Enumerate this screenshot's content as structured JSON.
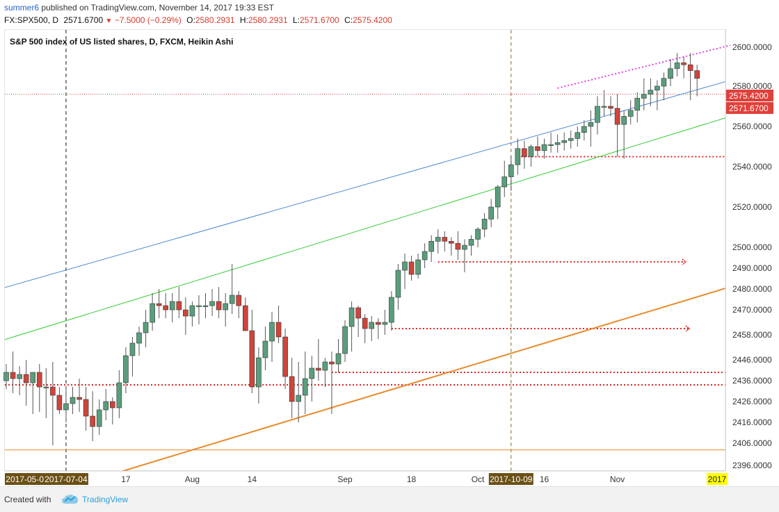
{
  "header": {
    "author": "summer6",
    "published": "published on TradingView.com, November 14, 2017 19:33 EST",
    "symbol": "FX:SPX500, D",
    "last": "2571.6700",
    "change": "−7.5000 (−0.29%)",
    "open_label": "O:",
    "open": "2580.2931",
    "high_label": "H:",
    "high": "2580.2931",
    "low_label": "L:",
    "low": "2571.6700",
    "close_label": "C:",
    "close": "2575.4200"
  },
  "chart_title": "S&P 500 index of US listed shares, D, FXCM, Heikin Ashi",
  "footer": {
    "created_with": "Created with",
    "brand": "TradingView"
  },
  "colors": {
    "bull": "#5a9e7c",
    "bear": "#d0443a",
    "blue_line": "#4a86cf",
    "green_line": "#33cc33",
    "orange_line": "#e88a2a",
    "dotted_red": "#e02020",
    "magenta": "#e040e0",
    "price_label": "#e0403a",
    "date_label_bg": "#6b4f14",
    "highlight_label": "#ffff00"
  },
  "chart_data": {
    "type": "candlestick",
    "title": "S&P 500 index of US listed shares, D, FXCM, Heikin Ashi",
    "y_ticks": [
      2600,
      2580,
      2560,
      2540,
      2520,
      2500,
      2490,
      2480,
      2470,
      2458,
      2446,
      2436,
      2426,
      2416,
      2406,
      2396
    ],
    "y_tick_labels": [
      "2600.0000",
      "2580.0000",
      "2560.0000",
      "2540.0000",
      "2520.0000",
      "2500.0000",
      "2490.0000",
      "2480.0000",
      "2470.0000",
      "2458.0000",
      "2446.0000",
      "2436.0000",
      "2426.0000",
      "2416.0000",
      "2406.0000",
      "2396.0000"
    ],
    "price_labels": [
      {
        "text": "2575.4200",
        "value": 2575.42
      },
      {
        "text": "2571.6700",
        "value": 2571.67
      }
    ],
    "x_labels": [
      {
        "text": "2017-05-05",
        "index": 1,
        "highlight": "date"
      },
      {
        "text": "2017-07-04",
        "index": 9,
        "highlight": "date"
      },
      {
        "text": "17",
        "index": 18
      },
      {
        "text": "Aug",
        "index": 28
      },
      {
        "text": "14",
        "index": 37
      },
      {
        "text": "Sep",
        "index": 51
      },
      {
        "text": "18",
        "index": 61
      },
      {
        "text": "Oct",
        "index": 71
      },
      {
        "text": "2017-10-09",
        "index": 76,
        "highlight": "date"
      },
      {
        "text": "16",
        "index": 81
      },
      {
        "text": "Nov",
        "index": 92
      },
      {
        "text": "2017",
        "index": 105,
        "highlight": "yellow"
      }
    ],
    "candles": [
      [
        2436,
        2444,
        2432,
        2440
      ],
      [
        2440,
        2450,
        2430,
        2437
      ],
      [
        2437,
        2443,
        2429,
        2439
      ],
      [
        2439,
        2446,
        2424,
        2435
      ],
      [
        2435,
        2440,
        2420,
        2440
      ],
      [
        2440,
        2444,
        2421,
        2433
      ],
      [
        2433,
        2442,
        2418,
        2433
      ],
      [
        2433,
        2445,
        2405,
        2429
      ],
      [
        2429,
        2433,
        2420,
        2422
      ],
      [
        2422,
        2433,
        2416,
        2425
      ],
      [
        2425,
        2433,
        2420,
        2428
      ],
      [
        2428,
        2437,
        2421,
        2427
      ],
      [
        2427,
        2433,
        2412,
        2419
      ],
      [
        2419,
        2431,
        2407,
        2414
      ],
      [
        2414,
        2427,
        2410,
        2422
      ],
      [
        2422,
        2432,
        2417,
        2426
      ],
      [
        2426,
        2428,
        2415,
        2423
      ],
      [
        2423,
        2441,
        2418,
        2435
      ],
      [
        2435,
        2452,
        2430,
        2448
      ],
      [
        2448,
        2457,
        2438,
        2454
      ],
      [
        2454,
        2462,
        2448,
        2459
      ],
      [
        2459,
        2470,
        2452,
        2464
      ],
      [
        2464,
        2478,
        2460,
        2473
      ],
      [
        2473,
        2480,
        2466,
        2472
      ],
      [
        2472,
        2478,
        2466,
        2470
      ],
      [
        2470,
        2478,
        2464,
        2474
      ],
      [
        2474,
        2481,
        2466,
        2470
      ],
      [
        2470,
        2476,
        2458,
        2467
      ],
      [
        2467,
        2474,
        2462,
        2472
      ],
      [
        2472,
        2477,
        2463,
        2472
      ],
      [
        2472,
        2478,
        2466,
        2472
      ],
      [
        2472,
        2480,
        2467,
        2474
      ],
      [
        2474,
        2481,
        2466,
        2470
      ],
      [
        2470,
        2478,
        2462,
        2473
      ],
      [
        2473,
        2492,
        2468,
        2477
      ],
      [
        2477,
        2479,
        2466,
        2472
      ],
      [
        2472,
        2476,
        2461,
        2460
      ],
      [
        2460,
        2470,
        2430,
        2433
      ],
      [
        2433,
        2452,
        2425,
        2447
      ],
      [
        2447,
        2462,
        2441,
        2455
      ],
      [
        2455,
        2469,
        2445,
        2464
      ],
      [
        2464,
        2472,
        2454,
        2457
      ],
      [
        2457,
        2461,
        2432,
        2438
      ],
      [
        2438,
        2447,
        2418,
        2426
      ],
      [
        2426,
        2445,
        2416,
        2429
      ],
      [
        2429,
        2450,
        2420,
        2437
      ],
      [
        2437,
        2448,
        2426,
        2442
      ],
      [
        2442,
        2456,
        2436,
        2441
      ],
      [
        2441,
        2447,
        2433,
        2445
      ],
      [
        2445,
        2450,
        2420,
        2444
      ],
      [
        2444,
        2456,
        2440,
        2449
      ],
      [
        2449,
        2465,
        2445,
        2462
      ],
      [
        2462,
        2474,
        2450,
        2471
      ],
      [
        2471,
        2472,
        2457,
        2466
      ],
      [
        2466,
        2468,
        2454,
        2461
      ],
      [
        2461,
        2467,
        2455,
        2464
      ],
      [
        2464,
        2466,
        2456,
        2463
      ],
      [
        2463,
        2470,
        2458,
        2464
      ],
      [
        2464,
        2479,
        2460,
        2476
      ],
      [
        2476,
        2492,
        2470,
        2489
      ],
      [
        2489,
        2497,
        2480,
        2493
      ],
      [
        2493,
        2496,
        2484,
        2487
      ],
      [
        2487,
        2497,
        2485,
        2494
      ],
      [
        2494,
        2502,
        2490,
        2498
      ],
      [
        2498,
        2506,
        2493,
        2503
      ],
      [
        2503,
        2509,
        2497,
        2505
      ],
      [
        2505,
        2508,
        2498,
        2503
      ],
      [
        2503,
        2505,
        2496,
        2502
      ],
      [
        2502,
        2508,
        2494,
        2499
      ],
      [
        2499,
        2504,
        2488,
        2501
      ],
      [
        2501,
        2506,
        2496,
        2504
      ],
      [
        2504,
        2510,
        2500,
        2509
      ],
      [
        2509,
        2517,
        2505,
        2514
      ],
      [
        2514,
        2524,
        2510,
        2520
      ],
      [
        2520,
        2531,
        2514,
        2530
      ],
      [
        2530,
        2543,
        2525,
        2535
      ],
      [
        2535,
        2545,
        2528,
        2541
      ],
      [
        2541,
        2554,
        2536,
        2549
      ],
      [
        2549,
        2553,
        2539,
        2545
      ],
      [
        2545,
        2551,
        2540,
        2550
      ],
      [
        2550,
        2555,
        2545,
        2548
      ],
      [
        2548,
        2554,
        2544,
        2551
      ],
      [
        2551,
        2557,
        2547,
        2551
      ],
      [
        2551,
        2556,
        2547,
        2552
      ],
      [
        2552,
        2557,
        2548,
        2553
      ],
      [
        2553,
        2558,
        2549,
        2554
      ],
      [
        2554,
        2560,
        2550,
        2557
      ],
      [
        2557,
        2563,
        2553,
        2560
      ],
      [
        2560,
        2568,
        2550,
        2562
      ],
      [
        2562,
        2575,
        2556,
        2570
      ],
      [
        2570,
        2578,
        2565,
        2570
      ],
      [
        2570,
        2575,
        2565,
        2569
      ],
      [
        2569,
        2576,
        2545,
        2561
      ],
      [
        2561,
        2568,
        2544,
        2565
      ],
      [
        2565,
        2573,
        2561,
        2568
      ],
      [
        2568,
        2577,
        2562,
        2574
      ],
      [
        2574,
        2584,
        2568,
        2576
      ],
      [
        2576,
        2584,
        2570,
        2578
      ],
      [
        2578,
        2583,
        2568,
        2580
      ],
      [
        2580,
        2587,
        2573,
        2584
      ],
      [
        2584,
        2594,
        2580,
        2589
      ],
      [
        2589,
        2597,
        2585,
        2592
      ],
      [
        2592,
        2595,
        2584,
        2591
      ],
      [
        2591,
        2597,
        2573,
        2588
      ],
      [
        2588,
        2591,
        2575,
        2584
      ]
    ],
    "trend_lines": [
      {
        "name": "blue",
        "from": [
          -1,
          2480
        ],
        "to": [
          110,
          2584
        ]
      },
      {
        "name": "green",
        "from": [
          -1,
          2455
        ],
        "to": [
          110,
          2566
        ]
      },
      {
        "name": "orange",
        "from": [
          17,
          2393
        ],
        "to": [
          110,
          2482
        ]
      }
    ],
    "horizontal_levels": [
      {
        "name": "orange-solid",
        "value": 2403
      },
      {
        "name": "red-dotted-1",
        "value": 2545
      },
      {
        "name": "red-dotted-2",
        "value": 2493
      },
      {
        "name": "red-dotted-3",
        "value": 2461
      },
      {
        "name": "red-dotted-4",
        "value": 2440
      },
      {
        "name": "red-dotted-5",
        "value": 2434
      },
      {
        "name": "red-dotted-6",
        "value": 2576
      }
    ],
    "vertical_markers": [
      {
        "name": "black-dashed",
        "index": 9
      },
      {
        "name": "brown-dashed",
        "index": 76
      }
    ]
  }
}
